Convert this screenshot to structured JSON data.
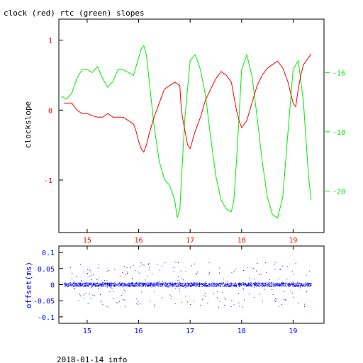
{
  "title": "clock (red) rtc (green) slopes",
  "footer": "2018-01-14 info",
  "colors": {
    "clock": "#ff0000",
    "rtc": "#00ee00",
    "offset": "#0000ff",
    "frame": "#000000"
  },
  "chart_data": [
    {
      "type": "line",
      "ylabel": "clockslope",
      "xlim": [
        14.45,
        19.6
      ],
      "ylim": [
        -1.75,
        1.3
      ],
      "y2lim": [
        -21.4,
        -14.2
      ],
      "x_ticks": [
        "15",
        "16",
        "17",
        "18",
        "19"
      ],
      "y_ticks": [
        "1",
        "0",
        "-1"
      ],
      "y2_ticks": [
        "-16",
        "-18",
        "-20"
      ],
      "grid": false,
      "series": [
        {
          "name": "clock",
          "axis": "left",
          "x": [
            14.55,
            14.7,
            14.8,
            14.9,
            15.0,
            15.1,
            15.2,
            15.3,
            15.4,
            15.5,
            15.6,
            15.7,
            15.8,
            15.9,
            15.95,
            16.0,
            16.05,
            16.1,
            16.15,
            16.2,
            16.3,
            16.4,
            16.5,
            16.6,
            16.7,
            16.8,
            16.82,
            16.85,
            16.9,
            16.95,
            17.0,
            17.1,
            17.2,
            17.3,
            17.4,
            17.5,
            17.6,
            17.7,
            17.8,
            17.85,
            17.9,
            17.95,
            18.0,
            18.1,
            18.2,
            18.3,
            18.4,
            18.5,
            18.6,
            18.7,
            18.8,
            18.9,
            19.0,
            19.05,
            19.1,
            19.15,
            19.2,
            19.3,
            19.35
          ],
          "y": [
            0.1,
            0.1,
            0.0,
            -0.05,
            -0.05,
            -0.08,
            -0.1,
            -0.1,
            -0.05,
            -0.1,
            -0.1,
            -0.1,
            -0.15,
            -0.2,
            -0.3,
            -0.45,
            -0.55,
            -0.6,
            -0.5,
            -0.35,
            -0.1,
            0.1,
            0.3,
            0.35,
            0.4,
            0.35,
            0.1,
            -0.1,
            -0.3,
            -0.5,
            -0.55,
            -0.3,
            -0.1,
            0.15,
            0.3,
            0.45,
            0.55,
            0.5,
            0.4,
            0.2,
            0.0,
            -0.15,
            -0.25,
            -0.15,
            0.1,
            0.35,
            0.5,
            0.6,
            0.65,
            0.7,
            0.6,
            0.4,
            0.1,
            0.05,
            0.3,
            0.5,
            0.65,
            0.75,
            0.8
          ]
        },
        {
          "name": "rtc",
          "axis": "right",
          "x": [
            14.5,
            14.6,
            14.7,
            14.8,
            14.9,
            15.0,
            15.1,
            15.2,
            15.3,
            15.4,
            15.5,
            15.6,
            15.7,
            15.8,
            15.9,
            16.0,
            16.05,
            16.1,
            16.15,
            16.2,
            16.3,
            16.4,
            16.5,
            16.6,
            16.7,
            16.75,
            16.8,
            16.85,
            16.9,
            17.0,
            17.1,
            17.2,
            17.3,
            17.4,
            17.5,
            17.6,
            17.7,
            17.8,
            17.85,
            17.9,
            17.95,
            18.0,
            18.1,
            18.2,
            18.3,
            18.4,
            18.5,
            18.6,
            18.7,
            18.8,
            18.9,
            19.0,
            19.1,
            19.2,
            19.3,
            19.35
          ],
          "y": [
            -16.8,
            -16.9,
            -16.7,
            -16.2,
            -15.9,
            -15.9,
            -16.0,
            -15.8,
            -16.2,
            -16.5,
            -16.3,
            -15.9,
            -15.9,
            -16.0,
            -16.1,
            -15.5,
            -15.2,
            -15.1,
            -15.4,
            -16.2,
            -17.8,
            -19.0,
            -19.6,
            -19.8,
            -20.3,
            -20.9,
            -20.6,
            -19.0,
            -17.5,
            -15.6,
            -15.4,
            -15.9,
            -16.8,
            -18.2,
            -19.5,
            -20.3,
            -20.6,
            -20.7,
            -20.3,
            -19.0,
            -17.5,
            -15.9,
            -15.4,
            -16.1,
            -17.5,
            -19.0,
            -20.2,
            -20.8,
            -20.9,
            -20.2,
            -18.0,
            -15.9,
            -15.6,
            -17.0,
            -19.5,
            -20.3
          ]
        }
      ]
    },
    {
      "type": "scatter",
      "ylabel": "offset(ms)",
      "xlim": [
        14.45,
        19.6
      ],
      "ylim": [
        -0.12,
        0.12
      ],
      "x_ticks": [
        "15",
        "16",
        "17",
        "18",
        "19"
      ],
      "y_ticks": [
        "0.1",
        "0.05",
        "0",
        "-0.05",
        "-0.1"
      ],
      "grid": false,
      "series": [
        {
          "name": "offset",
          "x_range": [
            14.55,
            19.35
          ],
          "y_center": 0.0,
          "y_spread": 0.006
        }
      ]
    }
  ]
}
